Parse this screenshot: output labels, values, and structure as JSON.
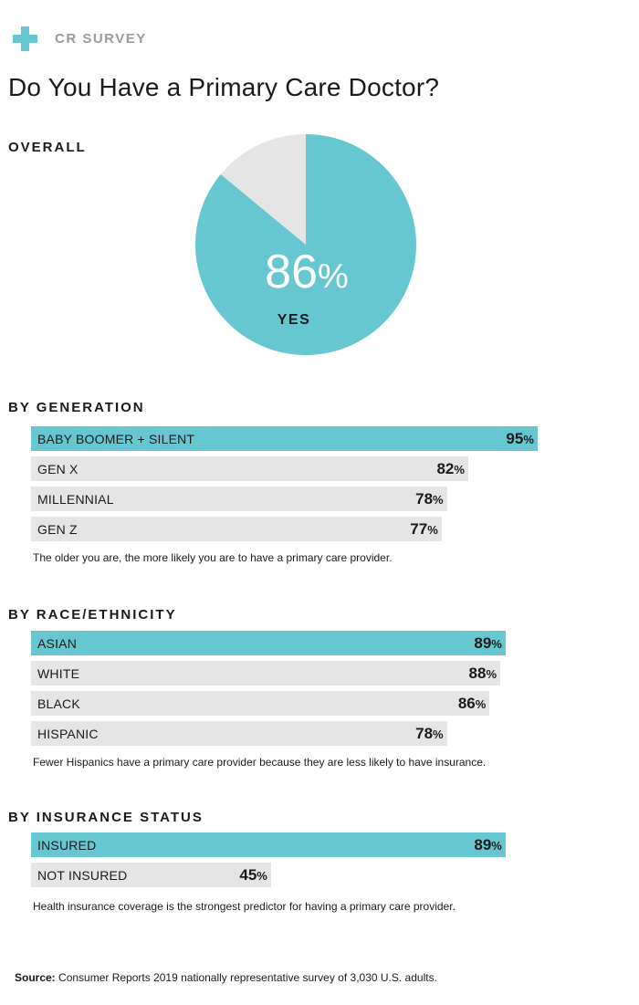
{
  "brand": {
    "text": "CR SURVEY",
    "accent_color": "#67c7d0",
    "icon": "plus-icon"
  },
  "title": "Do You Have a Primary Care Doctor?",
  "overall": {
    "label": "OVERALL",
    "value_text": "86",
    "pct_sign": "%",
    "caption": "YES"
  },
  "chart_data": [
    {
      "type": "pie",
      "title": "OVERALL",
      "categories": [
        "YES",
        ""
      ],
      "values": [
        86,
        14
      ],
      "colors": [
        "#67c7d0",
        "#e5e5e5"
      ]
    },
    {
      "type": "bar",
      "orientation": "horizontal",
      "title": "BY GENERATION",
      "categories": [
        "BABY BOOMER + SILENT",
        "GEN X",
        "MILLENNIAL",
        "GEN Z"
      ],
      "values": [
        95,
        82,
        78,
        77
      ],
      "value_labels": [
        "95",
        "82",
        "78",
        "77"
      ],
      "highlight_index": 0,
      "note": "The older you are, the more likely you are to have a primary care provider."
    },
    {
      "type": "bar",
      "orientation": "horizontal",
      "title": "BY RACE/ETHNICITY",
      "categories": [
        "ASIAN",
        "WHITE",
        "BLACK",
        "HISPANIC"
      ],
      "values": [
        89,
        88,
        86,
        78
      ],
      "value_labels": [
        "89",
        "88",
        "86",
        "78"
      ],
      "highlight_index": 0,
      "note": "Fewer Hispanics have a primary care provider because they are less likely to have insurance."
    },
    {
      "type": "bar",
      "orientation": "horizontal",
      "title": "BY INSURANCE STATUS",
      "categories": [
        "INSURED",
        "NOT INSURED"
      ],
      "values": [
        89,
        45
      ],
      "value_labels": [
        "89",
        "45"
      ],
      "highlight_index": 0,
      "note": "Health insurance coverage is the strongest predictor for having a primary care provider."
    }
  ],
  "pct_sign": "%",
  "colors": {
    "accent": "#67c7d0",
    "muted": "#e5e5e5"
  },
  "source": {
    "label": "Source:",
    "text": " Consumer Reports 2019 nationally representative survey of 3,030 U.S. adults."
  }
}
